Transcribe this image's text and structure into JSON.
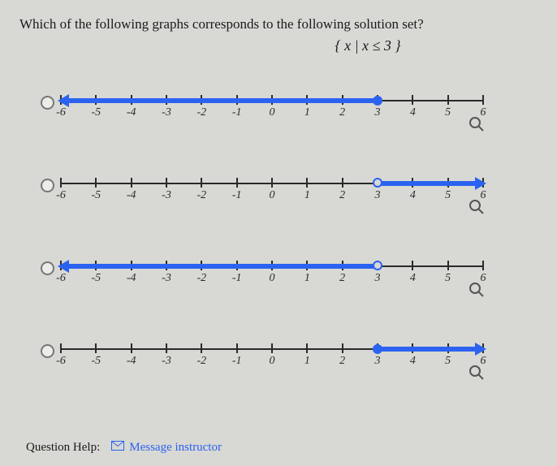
{
  "question": {
    "text": "Which of the following graphs corresponds to the following solution set?",
    "expression": "{ x | x ≤ 3 }"
  },
  "axis": {
    "min": -6,
    "max": 6,
    "step": 1,
    "ticks": [
      -6,
      -5,
      -4,
      -3,
      -2,
      -1,
      0,
      1,
      2,
      3,
      4,
      5,
      6
    ],
    "axis_color": "#2a2a2a",
    "label_fontsize": 14
  },
  "ray_color": "#2b62f0",
  "options": [
    {
      "id": "opt-a",
      "direction": "left",
      "endpoint": 3,
      "endpoint_type": "closed"
    },
    {
      "id": "opt-b",
      "direction": "right",
      "endpoint": 3,
      "endpoint_type": "open"
    },
    {
      "id": "opt-c",
      "direction": "left",
      "endpoint": 3,
      "endpoint_type": "open"
    },
    {
      "id": "opt-d",
      "direction": "right",
      "endpoint": 3,
      "endpoint_type": "closed"
    }
  ],
  "help": {
    "label": "Question Help:",
    "link_text": "Message instructor"
  }
}
